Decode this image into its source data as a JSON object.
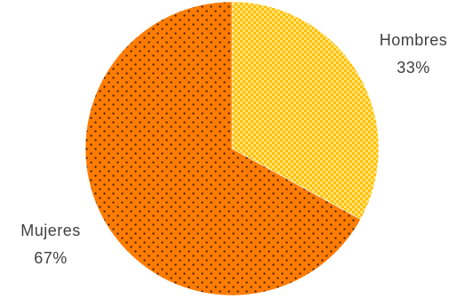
{
  "chart_data": {
    "type": "pie",
    "slices": [
      {
        "name": "Hombres",
        "value": 33,
        "label": "33%",
        "color": "#FFC000",
        "pattern": "checkered"
      },
      {
        "name": "Mujeres",
        "value": 67,
        "label": "67%",
        "color": "#FF7C00",
        "pattern": "dotted"
      }
    ],
    "start_angle": "12 o'clock",
    "direction": "clockwise",
    "legend": "none"
  }
}
